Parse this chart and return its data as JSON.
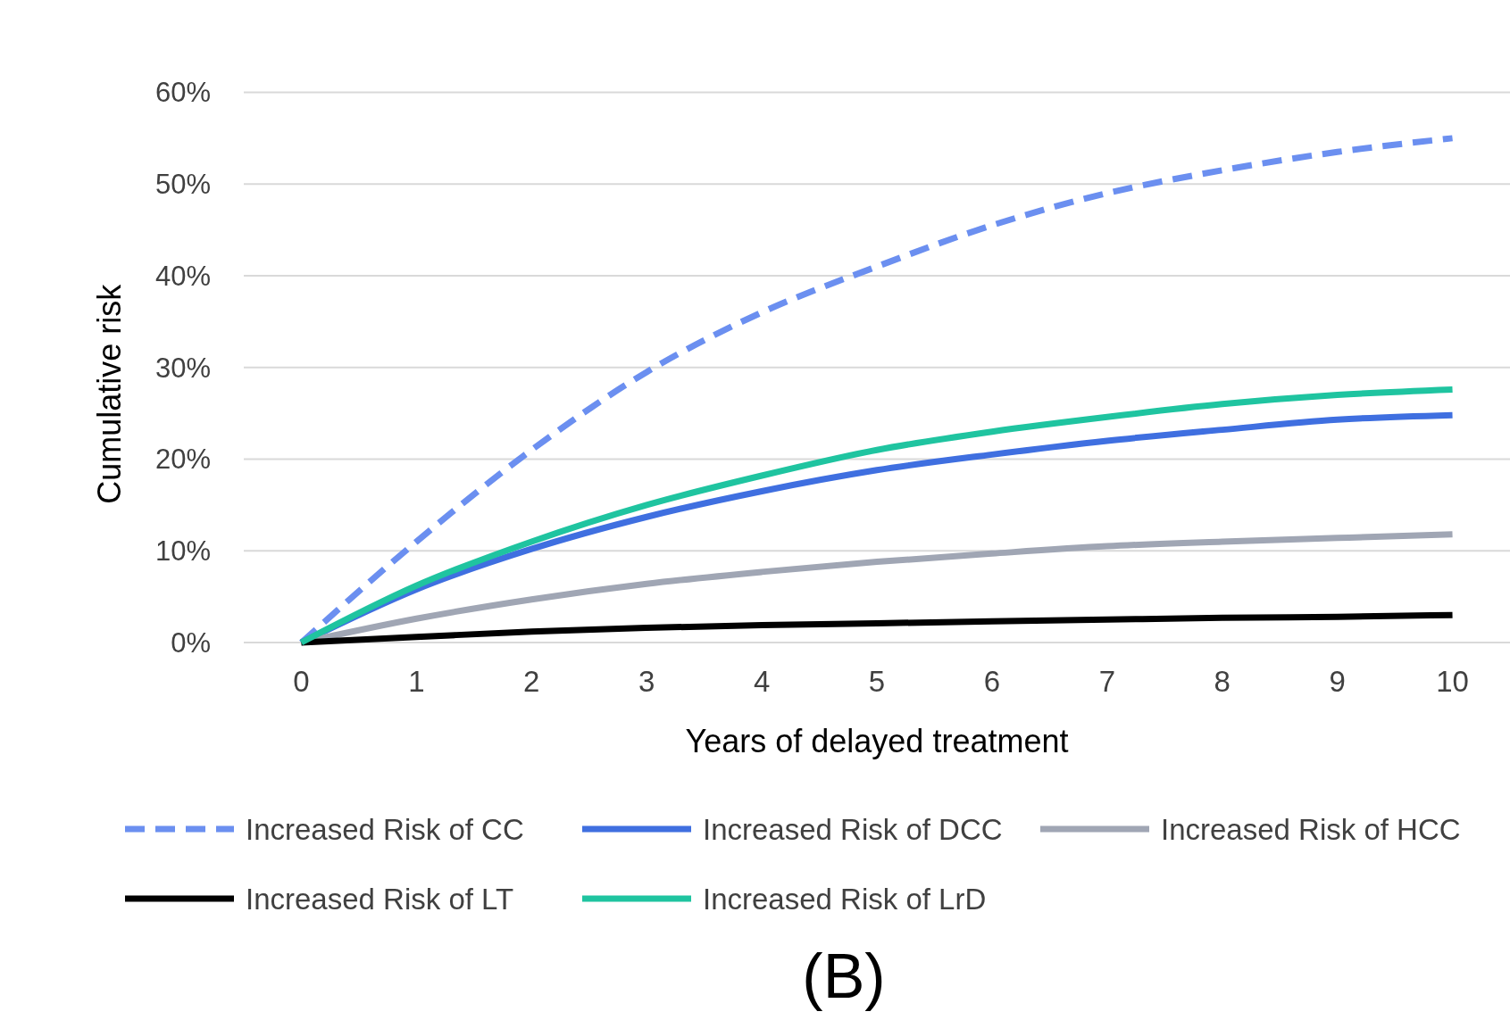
{
  "chart_data": {
    "type": "line",
    "xlabel": "Years of delayed treatment",
    "ylabel": "Cumulative risk",
    "x": [
      0,
      1,
      2,
      3,
      4,
      5,
      6,
      7,
      8,
      9,
      10
    ],
    "xlim": [
      -0.5,
      10.5
    ],
    "xticks": [
      0,
      1,
      2,
      3,
      4,
      5,
      6,
      7,
      8,
      9,
      10
    ],
    "ylim": [
      0,
      60
    ],
    "yticks": [
      {
        "value": 0,
        "label": "0%"
      },
      {
        "value": 10,
        "label": "10%"
      },
      {
        "value": 20,
        "label": "20%"
      },
      {
        "value": 30,
        "label": "30%"
      },
      {
        "value": 40,
        "label": "40%"
      },
      {
        "value": 50,
        "label": "50%"
      },
      {
        "value": 60,
        "label": "60%"
      }
    ],
    "grid": "y",
    "legend": "bottom",
    "marker": "none",
    "annotations": [
      "(B)"
    ],
    "series": [
      {
        "name": "Increased Risk of CC",
        "color": "#6b8ff0",
        "line_style": "dashed",
        "values": [
          0,
          11,
          21,
          29.5,
          36,
          41,
          45.5,
          49,
          51.5,
          53.5,
          55
        ]
      },
      {
        "name": "Increased Risk of DCC",
        "color": "#3f6fe0",
        "line_style": "solid",
        "values": [
          0,
          5.8,
          10.2,
          13.7,
          16.5,
          18.8,
          20.5,
          22,
          23.2,
          24.3,
          24.8
        ]
      },
      {
        "name": "Increased Risk of HCC",
        "color": "#a0a6b4",
        "line_style": "solid",
        "values": [
          0,
          2.6,
          4.7,
          6.4,
          7.7,
          8.8,
          9.7,
          10.5,
          11,
          11.4,
          11.8
        ]
      },
      {
        "name": "Increased Risk of LT",
        "color": "#000000",
        "line_style": "solid",
        "values": [
          0,
          0.6,
          1.2,
          1.6,
          1.9,
          2.1,
          2.3,
          2.5,
          2.7,
          2.8,
          3
        ]
      },
      {
        "name": "Increased Risk of LrD",
        "color": "#1fc4a0",
        "line_style": "solid",
        "values": [
          0,
          6.2,
          11,
          15,
          18.2,
          21,
          23,
          24.6,
          26,
          27,
          27.6
        ]
      }
    ]
  }
}
